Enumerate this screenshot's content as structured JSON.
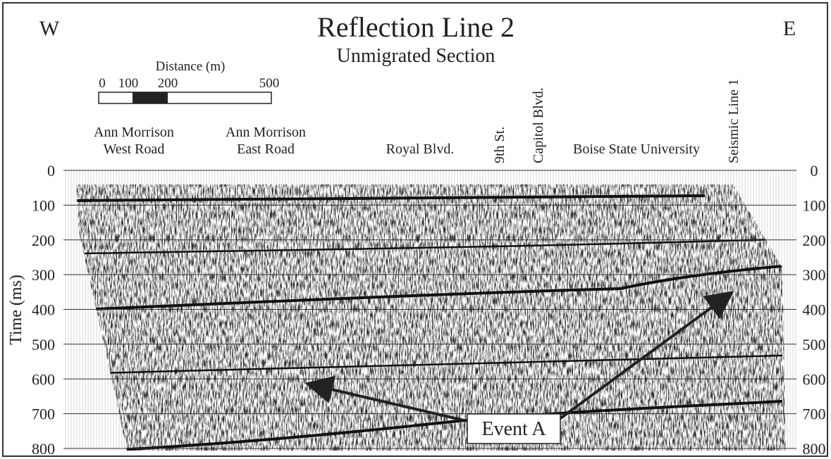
{
  "header": {
    "west": "W",
    "title": "Reflection Line 2",
    "subtitle": "Unmigrated Section",
    "east": "E"
  },
  "scale_bar": {
    "label": "Distance (m)",
    "ticks": [
      "0",
      "100",
      "200",
      "500"
    ]
  },
  "locations": [
    {
      "lines": [
        "Ann Morrison",
        "West Road"
      ]
    },
    {
      "lines": [
        "Ann Morrison",
        "East Road"
      ]
    },
    {
      "lines": [
        "Royal Blvd."
      ]
    },
    {
      "lines": [
        "9th St."
      ]
    },
    {
      "lines": [
        "Capitol Blvd."
      ]
    },
    {
      "lines": [
        "Boise State University"
      ]
    },
    {
      "lines": [
        "Seismic Line 1"
      ]
    }
  ],
  "time_axis": {
    "label": "Time (ms)",
    "ticks": [
      0,
      100,
      200,
      300,
      400,
      500,
      600,
      700,
      800
    ]
  },
  "annotation": "Event A"
}
